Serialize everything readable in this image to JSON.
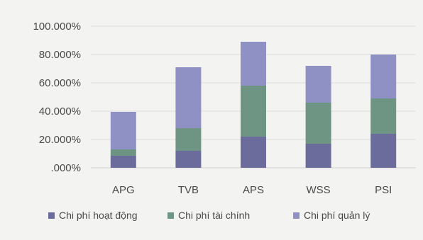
{
  "chart_data": {
    "type": "bar",
    "stacked": true,
    "categories": [
      "APG",
      "TVB",
      "APS",
      "WSS",
      "PSI"
    ],
    "series": [
      {
        "name": "Chi phí hoạt động",
        "color": "#6b6c9b",
        "values": [
          8.5,
          12.0,
          22.0,
          17.0,
          24.0
        ]
      },
      {
        "name": "Chi phí tài chính",
        "color": "#6e9583",
        "values": [
          4.5,
          16.0,
          36.0,
          29.0,
          25.0
        ]
      },
      {
        "name": "Chi phí quản lý",
        "color": "#8f90c4",
        "values": [
          26.5,
          43.0,
          31.0,
          26.0,
          31.0
        ]
      }
    ],
    "ylim": [
      0,
      100
    ],
    "yticks": [
      0,
      20,
      40,
      60,
      80,
      100
    ],
    "ytick_labels": [
      ".000%",
      "20.000%",
      "40.000%",
      "60.000%",
      "80.000%",
      "100.000%"
    ],
    "grid": true,
    "legend_position": "bottom",
    "title": "",
    "xlabel": "",
    "ylabel": ""
  }
}
